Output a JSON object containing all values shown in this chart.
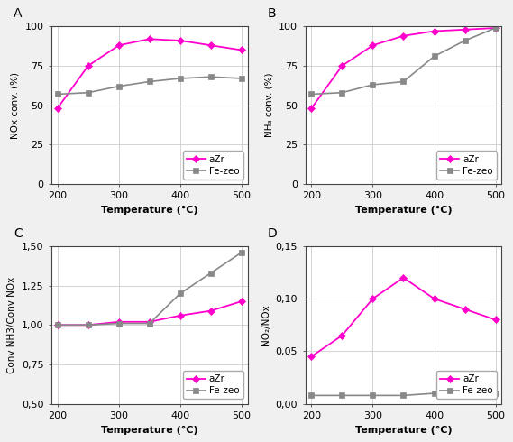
{
  "temp": [
    200,
    250,
    300,
    350,
    400,
    450,
    500
  ],
  "A_aZr": [
    48,
    75,
    88,
    92,
    91,
    88,
    85
  ],
  "A_fezeo": [
    57,
    58,
    62,
    65,
    67,
    68,
    67
  ],
  "B_aZr": [
    48,
    75,
    88,
    94,
    97,
    98,
    99
  ],
  "B_fezeo": [
    57,
    58,
    63,
    65,
    81,
    91,
    99
  ],
  "C_aZr": [
    1.0,
    1.0,
    1.02,
    1.02,
    1.06,
    1.09,
    1.15
  ],
  "C_fezeo": [
    1.0,
    1.0,
    1.01,
    1.01,
    1.2,
    1.33,
    1.46
  ],
  "D_aZr": [
    0.045,
    0.065,
    0.1,
    0.12,
    0.1,
    0.09,
    0.08
  ],
  "D_fezeo": [
    0.008,
    0.008,
    0.008,
    0.008,
    0.01,
    0.01,
    0.01
  ],
  "color_aZr": "#FF00CC",
  "color_fezeo": "#888888",
  "A_ylabel": "NOx conv. (%)",
  "B_ylabel": "NH₃ conv. (%)",
  "C_ylabel": "Conv NH3/Conv NOx",
  "D_ylabel": "NO₂/NOx",
  "xlabel": "Temperature (°C)",
  "A_ylim": [
    0,
    100
  ],
  "B_ylim": [
    0,
    100
  ],
  "C_ylim": [
    0.5,
    1.5
  ],
  "D_ylim": [
    0.0,
    0.15
  ],
  "A_yticks": [
    0,
    25,
    50,
    75,
    100
  ],
  "B_yticks": [
    0,
    25,
    50,
    75,
    100
  ],
  "C_yticks": [
    0.5,
    0.75,
    1.0,
    1.25,
    1.5
  ],
  "D_yticks": [
    0.0,
    0.05,
    0.1,
    0.15
  ],
  "C_yticklabels": [
    "0,50",
    "0,75",
    "1,00",
    "1,25",
    "1,50"
  ],
  "D_yticklabels": [
    "0,00",
    "0,05",
    "0,10",
    "0,15"
  ],
  "xticks": [
    200,
    300,
    400,
    500
  ],
  "legend_aZr": "aZr",
  "legend_fezeo": "Fe-zeo",
  "fig_facecolor": "#f0f0f0",
  "panel_facecolor": "#ffffff"
}
